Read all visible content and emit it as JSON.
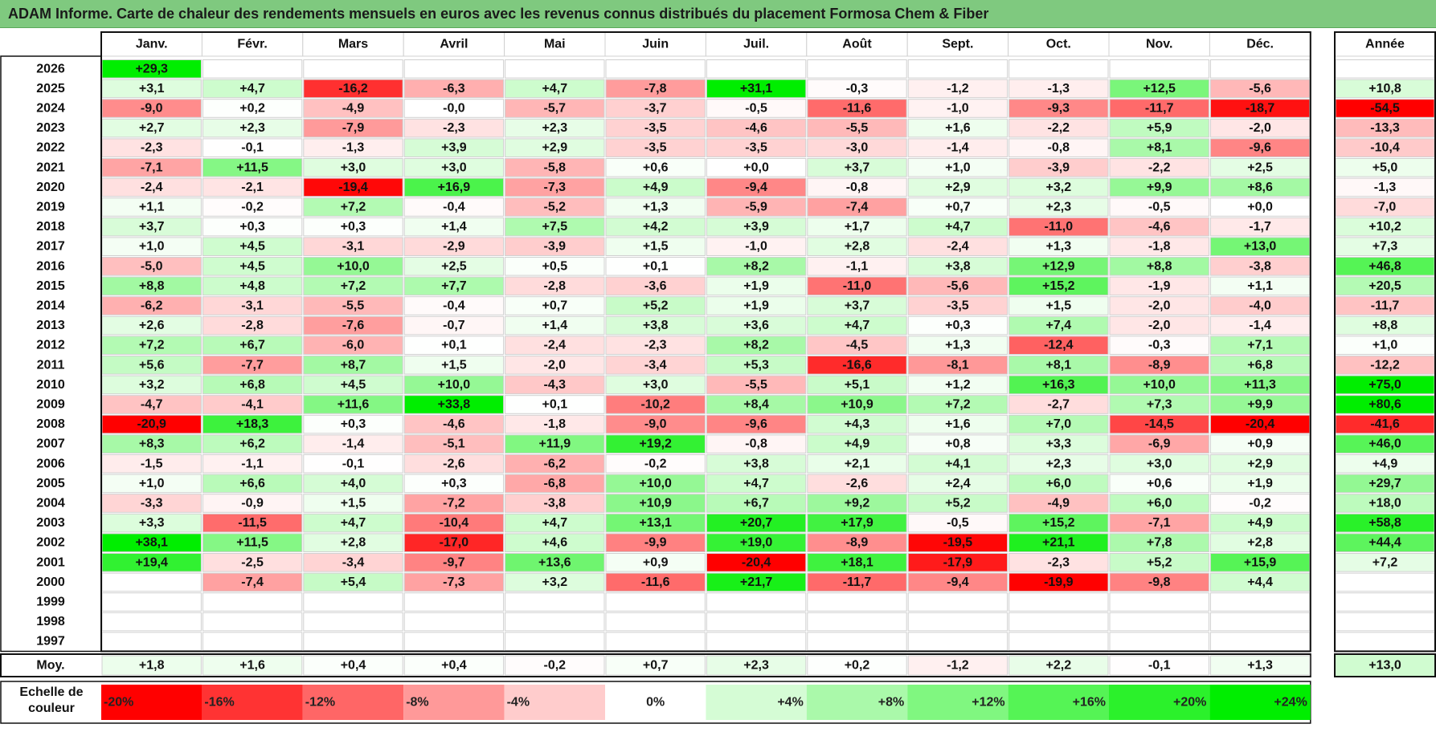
{
  "title": "ADAM Informe. Carte de chaleur des rendements mensuels en euros avec les revenus connus distribués du placement Formosa Chem & Fiber",
  "chart_data": {
    "type": "heatmap",
    "title": "ADAM Informe. Carte de chaleur des rendements mensuels en euros avec les revenus connus distribués du placement Formosa Chem & Fiber",
    "months": [
      "Janv.",
      "Févr.",
      "Mars",
      "Avril",
      "Mai",
      "Juin",
      "Juil.",
      "Août",
      "Sept.",
      "Oct.",
      "Nov.",
      "Déc."
    ],
    "year_header": "Année",
    "rows": [
      {
        "year": "2026",
        "values": [
          "+29,3",
          null,
          null,
          null,
          null,
          null,
          null,
          null,
          null,
          null,
          null,
          null
        ],
        "annual": null
      },
      {
        "year": "2025",
        "values": [
          "+3,1",
          "+4,7",
          "-16,2",
          "-6,3",
          "+4,7",
          "-7,8",
          "+31,1",
          "-0,3",
          "-1,2",
          "-1,3",
          "+12,5",
          "-5,6"
        ],
        "annual": "+10,8"
      },
      {
        "year": "2024",
        "values": [
          "-9,0",
          "+0,2",
          "-4,9",
          "-0,0",
          "-5,7",
          "-3,7",
          "-0,5",
          "-11,6",
          "-1,0",
          "-9,3",
          "-11,7",
          "-18,7"
        ],
        "annual": "-54,5"
      },
      {
        "year": "2023",
        "values": [
          "+2,7",
          "+2,3",
          "-7,9",
          "-2,3",
          "+2,3",
          "-3,5",
          "-4,6",
          "-5,5",
          "+1,6",
          "-2,2",
          "+5,9",
          "-2,0"
        ],
        "annual": "-13,3"
      },
      {
        "year": "2022",
        "values": [
          "-2,3",
          "-0,1",
          "-1,3",
          "+3,9",
          "+2,9",
          "-3,5",
          "-3,5",
          "-3,0",
          "-1,4",
          "-0,8",
          "+8,1",
          "-9,6"
        ],
        "annual": "-10,4"
      },
      {
        "year": "2021",
        "values": [
          "-7,1",
          "+11,5",
          "+3,0",
          "+3,0",
          "-5,8",
          "+0,6",
          "+0,0",
          "+3,7",
          "+1,0",
          "-3,9",
          "-2,2",
          "+2,5"
        ],
        "annual": "+5,0"
      },
      {
        "year": "2020",
        "values": [
          "-2,4",
          "-2,1",
          "-19,4",
          "+16,9",
          "-7,3",
          "+4,9",
          "-9,4",
          "-0,8",
          "+2,9",
          "+3,2",
          "+9,9",
          "+8,6"
        ],
        "annual": "-1,3"
      },
      {
        "year": "2019",
        "values": [
          "+1,1",
          "-0,2",
          "+7,2",
          "-0,4",
          "-5,2",
          "+1,3",
          "-5,9",
          "-7,4",
          "+0,7",
          "+2,3",
          "-0,5",
          "+0,0"
        ],
        "annual": "-7,0"
      },
      {
        "year": "2018",
        "values": [
          "+3,7",
          "+0,3",
          "+0,3",
          "+1,4",
          "+7,5",
          "+4,2",
          "+3,9",
          "+1,7",
          "+4,7",
          "-11,0",
          "-4,6",
          "-1,7"
        ],
        "annual": "+10,2"
      },
      {
        "year": "2017",
        "values": [
          "+1,0",
          "+4,5",
          "-3,1",
          "-2,9",
          "-3,9",
          "+1,5",
          "-1,0",
          "+2,8",
          "-2,4",
          "+1,3",
          "-1,8",
          "+13,0"
        ],
        "annual": "+7,3"
      },
      {
        "year": "2016",
        "values": [
          "-5,0",
          "+4,5",
          "+10,0",
          "+2,5",
          "+0,5",
          "+0,1",
          "+8,2",
          "-1,1",
          "+3,8",
          "+12,9",
          "+8,8",
          "-3,8"
        ],
        "annual": "+46,8"
      },
      {
        "year": "2015",
        "values": [
          "+8,8",
          "+4,8",
          "+7,2",
          "+7,7",
          "-2,8",
          "-3,6",
          "+1,9",
          "-11,0",
          "-5,6",
          "+15,2",
          "-1,9",
          "+1,1"
        ],
        "annual": "+20,5"
      },
      {
        "year": "2014",
        "values": [
          "-6,2",
          "-3,1",
          "-5,5",
          "-0,4",
          "+0,7",
          "+5,2",
          "+1,9",
          "+3,7",
          "-3,5",
          "+1,5",
          "-2,0",
          "-4,0"
        ],
        "annual": "-11,7"
      },
      {
        "year": "2013",
        "values": [
          "+2,6",
          "-2,8",
          "-7,6",
          "-0,7",
          "+1,4",
          "+3,8",
          "+3,6",
          "+4,7",
          "+0,3",
          "+7,4",
          "-2,0",
          "-1,4"
        ],
        "annual": "+8,8"
      },
      {
        "year": "2012",
        "values": [
          "+7,2",
          "+6,7",
          "-6,0",
          "+0,1",
          "-2,4",
          "-2,3",
          "+8,2",
          "-4,5",
          "+1,3",
          "-12,4",
          "-0,3",
          "+7,1"
        ],
        "annual": "+1,0"
      },
      {
        "year": "2011",
        "values": [
          "+5,6",
          "-7,7",
          "+8,7",
          "+1,5",
          "-2,0",
          "-3,4",
          "+5,3",
          "-16,6",
          "-8,1",
          "+8,1",
          "-8,9",
          "+6,8"
        ],
        "annual": "-12,2"
      },
      {
        "year": "2010",
        "values": [
          "+3,2",
          "+6,8",
          "+4,5",
          "+10,0",
          "-4,3",
          "+3,0",
          "-5,5",
          "+5,1",
          "+1,2",
          "+16,3",
          "+10,0",
          "+11,3"
        ],
        "annual": "+75,0"
      },
      {
        "year": "2009",
        "values": [
          "-4,7",
          "-4,1",
          "+11,6",
          "+33,8",
          "+0,1",
          "-10,2",
          "+8,4",
          "+10,9",
          "+7,2",
          "-2,7",
          "+7,3",
          "+9,9"
        ],
        "annual": "+80,6"
      },
      {
        "year": "2008",
        "values": [
          "-20,9",
          "+18,3",
          "+0,3",
          "-4,6",
          "-1,8",
          "-9,0",
          "-9,6",
          "+4,3",
          "+1,6",
          "+7,0",
          "-14,5",
          "-20,4"
        ],
        "annual": "-41,6"
      },
      {
        "year": "2007",
        "values": [
          "+8,3",
          "+6,2",
          "-1,4",
          "-5,1",
          "+11,9",
          "+19,2",
          "-0,8",
          "+4,9",
          "+0,8",
          "+3,3",
          "-6,9",
          "+0,9"
        ],
        "annual": "+46,0"
      },
      {
        "year": "2006",
        "values": [
          "-1,5",
          "-1,1",
          "-0,1",
          "-2,6",
          "-6,2",
          "-0,2",
          "+3,8",
          "+2,1",
          "+4,1",
          "+2,3",
          "+3,0",
          "+2,9"
        ],
        "annual": "+4,9"
      },
      {
        "year": "2005",
        "values": [
          "+1,0",
          "+6,6",
          "+4,0",
          "+0,3",
          "-6,8",
          "+10,0",
          "+4,7",
          "-2,6",
          "+2,4",
          "+6,0",
          "+0,6",
          "+1,9"
        ],
        "annual": "+29,7"
      },
      {
        "year": "2004",
        "values": [
          "-3,3",
          "-0,9",
          "+1,5",
          "-7,2",
          "-3,8",
          "+10,9",
          "+6,7",
          "+9,2",
          "+5,2",
          "-4,9",
          "+6,0",
          "-0,2"
        ],
        "annual": "+18,0"
      },
      {
        "year": "2003",
        "values": [
          "+3,3",
          "-11,5",
          "+4,7",
          "-10,4",
          "+4,7",
          "+13,1",
          "+20,7",
          "+17,9",
          "-0,5",
          "+15,2",
          "-7,1",
          "+4,9"
        ],
        "annual": "+58,8"
      },
      {
        "year": "2002",
        "values": [
          "+38,1",
          "+11,5",
          "+2,8",
          "-17,0",
          "+4,6",
          "-9,9",
          "+19,0",
          "-8,9",
          "-19,5",
          "+21,1",
          "+7,8",
          "+2,8"
        ],
        "annual": "+44,4"
      },
      {
        "year": "2001",
        "values": [
          "+19,4",
          "-2,5",
          "-3,4",
          "-9,7",
          "+13,6",
          "+0,9",
          "-20,4",
          "+18,1",
          "-17,9",
          "-2,3",
          "+5,2",
          "+15,9"
        ],
        "annual": "+7,2"
      },
      {
        "year": "2000",
        "values": [
          null,
          "-7,4",
          "+5,4",
          "-7,3",
          "+3,2",
          "-11,6",
          "+21,7",
          "-11,7",
          "-9,4",
          "-19,9",
          "-9,8",
          "+4,4"
        ],
        "annual": null
      },
      {
        "year": "1999",
        "values": [
          null,
          null,
          null,
          null,
          null,
          null,
          null,
          null,
          null,
          null,
          null,
          null
        ],
        "annual": null
      },
      {
        "year": "1998",
        "values": [
          null,
          null,
          null,
          null,
          null,
          null,
          null,
          null,
          null,
          null,
          null,
          null
        ],
        "annual": null
      },
      {
        "year": "1997",
        "values": [
          null,
          null,
          null,
          null,
          null,
          null,
          null,
          null,
          null,
          null,
          null,
          null
        ],
        "annual": null
      }
    ],
    "average": {
      "label": "Moy.",
      "values": [
        "+1,8",
        "+1,6",
        "+0,4",
        "+0,4",
        "-0,2",
        "+0,7",
        "+2,3",
        "+0,2",
        "-1,2",
        "+2,2",
        "-0,1",
        "+1,3"
      ],
      "annual": "+13,0"
    },
    "color_scale": {
      "label_line1": "Echelle de",
      "label_line2": "couleur",
      "stops": [
        "-20%",
        "-16%",
        "-12%",
        "-8%",
        "-4%",
        "0%",
        "+4%",
        "+8%",
        "+12%",
        "+16%",
        "+20%",
        "+24%"
      ],
      "values": [
        -20,
        -16,
        -12,
        -8,
        -4,
        0,
        4,
        8,
        12,
        16,
        20,
        24
      ],
      "negative_color": "#ff0000",
      "neutral_color": "#ffffff",
      "positive_color": "#00ee00"
    }
  }
}
